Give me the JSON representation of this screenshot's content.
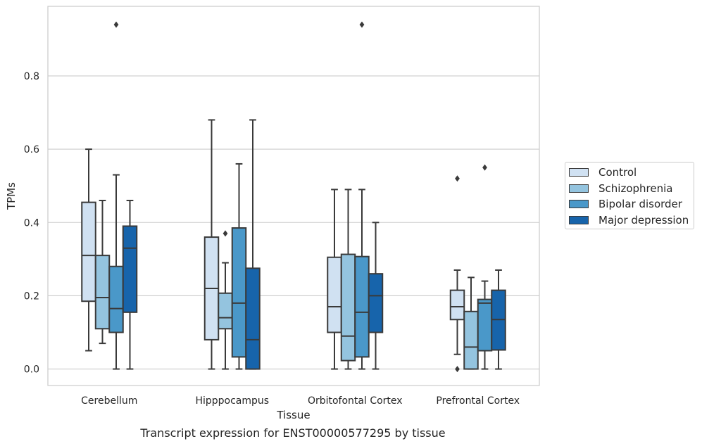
{
  "caption": "Transcript expression for ENST00000577295 by tissue",
  "chart_data": {
    "type": "box",
    "xlabel": "Tissue",
    "ylabel": "TPMs",
    "ylim": [
      -0.045,
      0.99
    ],
    "yticks": [
      "0.0",
      "0.2",
      "0.4",
      "0.6",
      "0.8"
    ],
    "grid": true,
    "legend_position": "right",
    "categories": [
      "Cerebellum",
      "Hipppocampus",
      "Orbitofontal Cortex",
      "Prefrontal Cortex"
    ],
    "series": [
      {
        "name": "Control",
        "color": "#d0e1f2",
        "boxes": [
          {
            "whislo": 0.05,
            "q1": 0.185,
            "med": 0.31,
            "q3": 0.455,
            "whishi": 0.6,
            "fliers": []
          },
          {
            "whislo": 0.0,
            "q1": 0.08,
            "med": 0.22,
            "q3": 0.36,
            "whishi": 0.68,
            "fliers": []
          },
          {
            "whislo": 0.0,
            "q1": 0.1,
            "med": 0.17,
            "q3": 0.305,
            "whishi": 0.49,
            "fliers": []
          },
          {
            "whislo": 0.04,
            "q1": 0.135,
            "med": 0.17,
            "q3": 0.215,
            "whishi": 0.27,
            "fliers": [
              0.52,
              0.0
            ]
          }
        ]
      },
      {
        "name": "Schizophrenia",
        "color": "#94c4df",
        "boxes": [
          {
            "whislo": 0.07,
            "q1": 0.11,
            "med": 0.195,
            "q3": 0.31,
            "whishi": 0.46,
            "fliers": []
          },
          {
            "whislo": 0.0,
            "q1": 0.11,
            "med": 0.14,
            "q3": 0.207,
            "whishi": 0.29,
            "fliers": [
              0.37
            ]
          },
          {
            "whislo": 0.0,
            "q1": 0.023,
            "med": 0.09,
            "q3": 0.313,
            "whishi": 0.49,
            "fliers": []
          },
          {
            "whislo": 0.0,
            "q1": 0.0,
            "med": 0.06,
            "q3": 0.157,
            "whishi": 0.25,
            "fliers": []
          }
        ]
      },
      {
        "name": "Bipolar disorder",
        "color": "#4a98c9",
        "boxes": [
          {
            "whislo": 0.0,
            "q1": 0.1,
            "med": 0.165,
            "q3": 0.28,
            "whishi": 0.53,
            "fliers": [
              0.94
            ]
          },
          {
            "whislo": 0.0,
            "q1": 0.033,
            "med": 0.18,
            "q3": 0.385,
            "whishi": 0.56,
            "fliers": []
          },
          {
            "whislo": 0.0,
            "q1": 0.033,
            "med": 0.155,
            "q3": 0.307,
            "whishi": 0.49,
            "fliers": [
              0.94
            ]
          },
          {
            "whislo": 0.0,
            "q1": 0.05,
            "med": 0.18,
            "q3": 0.19,
            "whishi": 0.24,
            "fliers": [
              0.55
            ]
          }
        ]
      },
      {
        "name": "Major depression",
        "color": "#1764ab",
        "boxes": [
          {
            "whislo": 0.0,
            "q1": 0.155,
            "med": 0.33,
            "q3": 0.39,
            "whishi": 0.46,
            "fliers": []
          },
          {
            "whislo": 0.0,
            "q1": 0.0,
            "med": 0.08,
            "q3": 0.275,
            "whishi": 0.68,
            "fliers": []
          },
          {
            "whislo": 0.0,
            "q1": 0.1,
            "med": 0.2,
            "q3": 0.26,
            "whishi": 0.4,
            "fliers": []
          },
          {
            "whislo": 0.0,
            "q1": 0.052,
            "med": 0.135,
            "q3": 0.215,
            "whishi": 0.27,
            "fliers": []
          }
        ]
      }
    ]
  }
}
